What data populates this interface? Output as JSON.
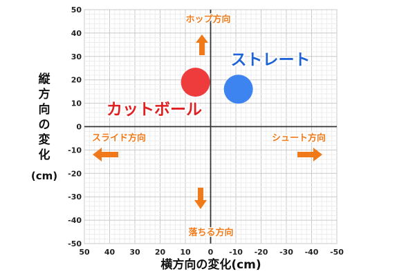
{
  "chart_data": {
    "type": "scatter",
    "xlabel": "横方向の変化(cm)",
    "ylabel_lines": [
      "縦",
      "方",
      "向",
      "の",
      "変",
      "化",
      "(cm)"
    ],
    "xlim": [
      50,
      -50
    ],
    "ylim": [
      -50,
      50
    ],
    "x_ticks": [
      50,
      40,
      30,
      20,
      10,
      0,
      -10,
      -20,
      -30,
      -40,
      -50
    ],
    "y_ticks": [
      50,
      40,
      30,
      20,
      10,
      0,
      -10,
      -20,
      -30,
      -40,
      -50
    ],
    "grid": true,
    "series": [
      {
        "name": "カットボール",
        "x": 6,
        "y": 19,
        "color": "#ee3b3b"
      },
      {
        "name": "ストレート",
        "x": -11,
        "y": 16,
        "color": "#3e84f0"
      }
    ],
    "annotations": {
      "hop": "ホップ方向",
      "drop": "落ちる方向",
      "slide": "スライド方向",
      "shoot": "シュート方向"
    },
    "arrow_color": "#f07a1a"
  }
}
